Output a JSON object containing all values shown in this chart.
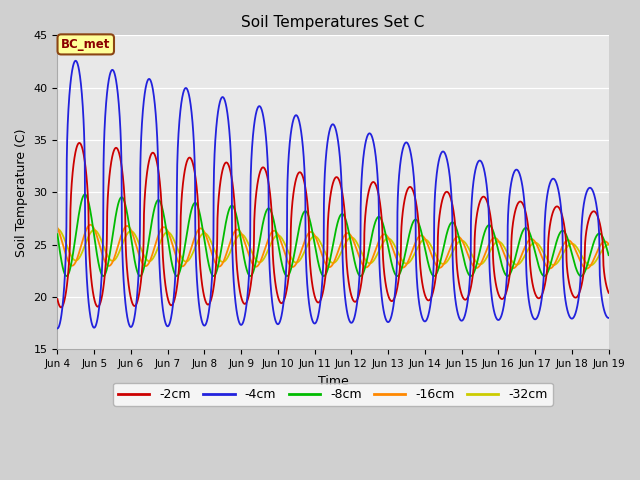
{
  "title": "Soil Temperatures Set C",
  "xlabel": "Time",
  "ylabel": "Soil Temperature (C)",
  "ylim": [
    15,
    45
  ],
  "xlim_days": [
    4,
    19
  ],
  "fig_facecolor": "#d0d0d0",
  "ax_facecolor": "#e8e8e8",
  "annotation_text": "BC_met",
  "annotation_color": "#8B0000",
  "annotation_bg": "#FFFF99",
  "annotation_border": "#8B4513",
  "series": {
    "-2cm": {
      "color": "#cc0000",
      "lw": 1.3
    },
    "-4cm": {
      "color": "#2222dd",
      "lw": 1.3
    },
    "-8cm": {
      "color": "#00bb00",
      "lw": 1.3
    },
    "-16cm": {
      "color": "#ff8800",
      "lw": 1.3
    },
    "-32cm": {
      "color": "#cccc00",
      "lw": 1.3
    }
  }
}
